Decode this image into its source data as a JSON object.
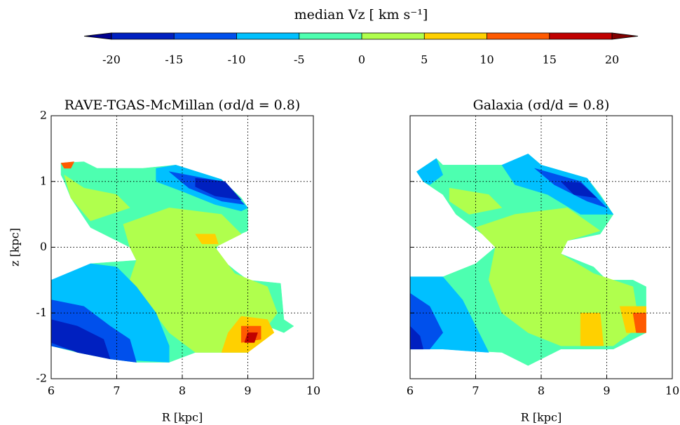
{
  "chart_data": [
    {
      "type": "colorbar",
      "title": "median Vz  [ km s⁻¹]",
      "ticks": [
        -20,
        -15,
        -10,
        -5,
        0,
        5,
        10,
        15,
        20
      ],
      "colors": [
        "#0020c0",
        "#0050ec",
        "#00c0ff",
        "#4dffb0",
        "#b0ff4d",
        "#ffd000",
        "#ff5a00",
        "#c00000"
      ],
      "under_color": "#00008f",
      "over_color": "#800000"
    },
    {
      "type": "contour",
      "title": "RAVE-TGAS-McMillan (σd/d = 0.8)",
      "xlabel": "R [kpc]",
      "ylabel": "z [kpc]",
      "xlim": [
        6,
        10
      ],
      "ylim": [
        -2,
        2
      ],
      "xticks": [
        6,
        7,
        8,
        9,
        10
      ],
      "yticks": [
        -2,
        -1,
        0,
        1,
        2
      ],
      "show_ytick_labels": true,
      "grid": true
    },
    {
      "type": "contour",
      "title": "Galaxia (σd/d = 0.8)",
      "xlabel": "R [kpc]",
      "xlim": [
        6,
        10
      ],
      "ylim": [
        -2,
        2
      ],
      "xticks": [
        6,
        7,
        8,
        9,
        10
      ],
      "yticks": [
        -2,
        -1,
        0,
        1,
        2
      ],
      "show_ytick_labels": false,
      "grid": true
    }
  ]
}
